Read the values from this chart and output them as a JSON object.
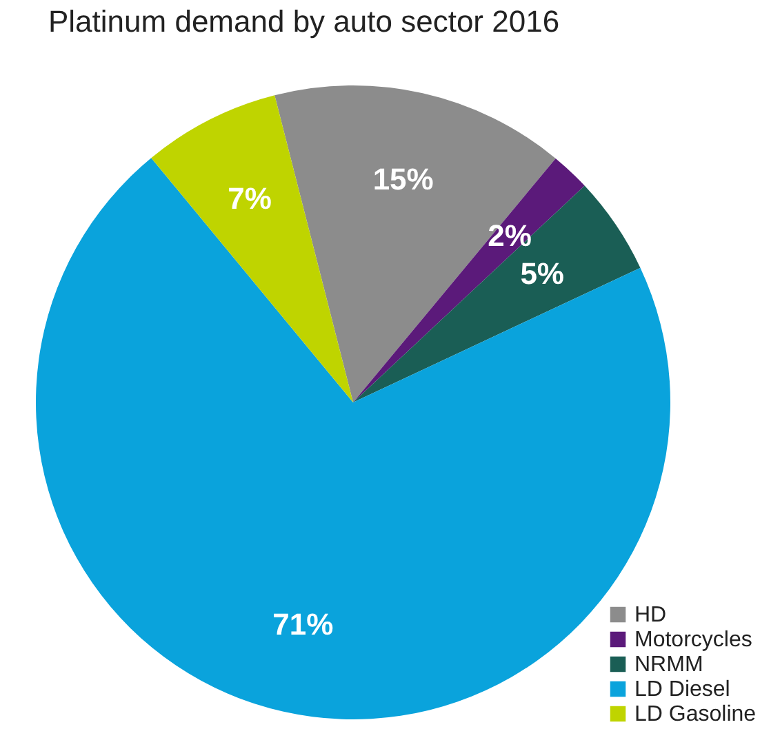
{
  "chart_data": {
    "type": "pie",
    "title": "Platinum demand by auto sector 2016",
    "categories": [
      "HD",
      "Motorcycles",
      "NRMM",
      "LD Diesel",
      "LD Gasoline"
    ],
    "values": [
      15,
      2,
      5,
      71,
      7
    ],
    "colors": [
      "#8c8c8c",
      "#5b1a7a",
      "#1a5e55",
      "#0aa3dc",
      "#bfd400"
    ],
    "value_labels": [
      "15%",
      "2%",
      "5%",
      "71%",
      "7%"
    ],
    "legend": "bottom right"
  }
}
